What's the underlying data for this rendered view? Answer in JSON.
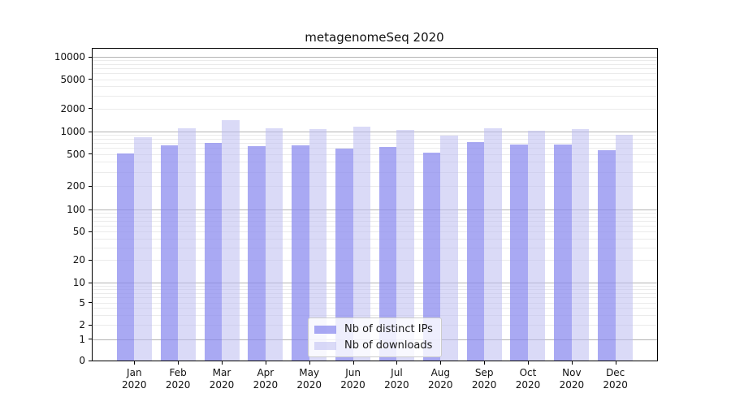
{
  "chart_data": {
    "type": "bar",
    "title": "metagenomeSeq 2020",
    "categories": [
      "Jan",
      "Feb",
      "Mar",
      "Apr",
      "May",
      "Jun",
      "Jul",
      "Aug",
      "Sep",
      "Oct",
      "Nov",
      "Dec"
    ],
    "year_label": "2020",
    "series": [
      {
        "name": "Nb of distinct IPs",
        "color": "rgba(136,136,238,0.72)",
        "values": [
          505,
          655,
          700,
          640,
          645,
          590,
          620,
          515,
          715,
          670,
          675,
          555
        ]
      },
      {
        "name": "Nb of downloads",
        "color": "rgba(187,187,240,0.55)",
        "values": [
          830,
          1110,
          1420,
          1090,
          1070,
          1150,
          1050,
          880,
          1110,
          1030,
          1080,
          895
        ]
      }
    ],
    "y_axis": {
      "scale": "log-like",
      "ticks": [
        0,
        1,
        2,
        5,
        10,
        20,
        50,
        100,
        200,
        500,
        1000,
        2000,
        5000,
        10000
      ],
      "range": [
        0,
        10000
      ]
    },
    "legend": {
      "position": "lower-center"
    },
    "grid": {
      "on": true,
      "major_color": "#b4b4b4",
      "minor_color": "#ebebeb"
    },
    "axis_color": "#000000",
    "text_color": "#111111"
  }
}
